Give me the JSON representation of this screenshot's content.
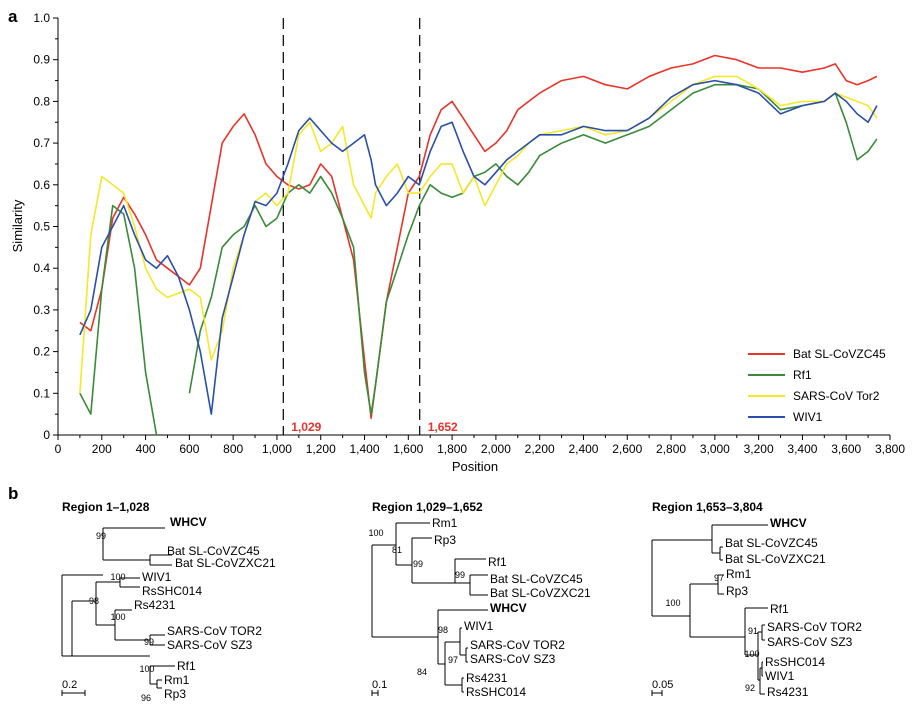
{
  "panel_a_letter": "a",
  "panel_b_letter": "b",
  "chart_data": {
    "type": "line",
    "xlabel": "Position",
    "ylabel": "Similarity",
    "xlim": [
      0,
      3800
    ],
    "ylim": [
      0,
      1.0
    ],
    "x_ticks": [
      0,
      200,
      400,
      600,
      800,
      1000,
      1200,
      1400,
      1600,
      1800,
      2000,
      2200,
      2400,
      2600,
      2800,
      3000,
      3200,
      3400,
      3600,
      3800
    ],
    "x_tick_labels": [
      "0",
      "200",
      "400",
      "600",
      "800",
      "1,000",
      "1,200",
      "1,400",
      "1,600",
      "1,800",
      "2,000",
      "2,200",
      "2,400",
      "2,600",
      "2,800",
      "3,000",
      "3,200",
      "3,400",
      "3,600",
      "3,800"
    ],
    "y_ticks": [
      0,
      0.1,
      0.2,
      0.3,
      0.4,
      0.5,
      0.6,
      0.7,
      0.8,
      0.9,
      1.0
    ],
    "y_tick_labels": [
      "0",
      "0.1",
      "0.2",
      "0.3",
      "0.4",
      "0.5",
      "0.6",
      "0.7",
      "0.8",
      "0.9",
      "1.0"
    ],
    "grid": false,
    "legend_position": "bottom-right",
    "breakpoints": [
      {
        "x": 1029,
        "label": "1,029",
        "color": "#e8332a"
      },
      {
        "x": 1652,
        "label": "1,652",
        "color": "#e8332a"
      }
    ],
    "x": [
      100,
      150,
      200,
      250,
      300,
      350,
      400,
      450,
      500,
      550,
      600,
      650,
      700,
      750,
      800,
      850,
      900,
      950,
      1000,
      1050,
      1100,
      1150,
      1200,
      1250,
      1300,
      1350,
      1400,
      1430,
      1450,
      1500,
      1550,
      1600,
      1650,
      1700,
      1750,
      1800,
      1850,
      1900,
      1950,
      2000,
      2050,
      2100,
      2150,
      2200,
      2300,
      2400,
      2500,
      2600,
      2700,
      2800,
      2900,
      3000,
      3100,
      3200,
      3300,
      3400,
      3500,
      3550,
      3600,
      3650,
      3700,
      3740
    ],
    "series": [
      {
        "name": "Bat SL-CoVZC45",
        "color": "#e8332a",
        "values": [
          0.27,
          0.25,
          0.35,
          0.52,
          0.57,
          0.53,
          0.48,
          0.42,
          0.4,
          0.38,
          0.36,
          0.4,
          0.55,
          0.7,
          0.74,
          0.77,
          0.72,
          0.65,
          0.62,
          0.6,
          0.59,
          0.6,
          0.65,
          0.62,
          0.52,
          0.42,
          0.18,
          0.04,
          0.12,
          0.32,
          0.45,
          0.58,
          0.62,
          0.72,
          0.78,
          0.8,
          0.76,
          0.72,
          0.68,
          0.7,
          0.73,
          0.78,
          0.8,
          0.82,
          0.85,
          0.86,
          0.84,
          0.83,
          0.86,
          0.88,
          0.89,
          0.91,
          0.9,
          0.88,
          0.88,
          0.87,
          0.88,
          0.89,
          0.85,
          0.84,
          0.85,
          0.86
        ]
      },
      {
        "name": "Rf1",
        "color": "#3a8a3a",
        "values": [
          0.1,
          0.05,
          0.35,
          0.55,
          0.53,
          0.4,
          0.15,
          0.0,
          null,
          null,
          0.1,
          0.25,
          0.33,
          0.45,
          0.48,
          0.5,
          0.55,
          0.5,
          0.52,
          0.58,
          0.6,
          0.58,
          0.62,
          0.58,
          0.52,
          0.45,
          0.15,
          0.05,
          0.12,
          0.32,
          0.4,
          0.48,
          0.55,
          0.6,
          0.58,
          0.57,
          0.58,
          0.62,
          0.63,
          0.65,
          0.62,
          0.6,
          0.63,
          0.67,
          0.7,
          0.72,
          0.7,
          0.72,
          0.74,
          0.78,
          0.82,
          0.84,
          0.84,
          0.83,
          0.78,
          0.79,
          0.8,
          0.82,
          0.75,
          0.66,
          0.68,
          0.71
        ]
      },
      {
        "name": "SARS-CoV Tor2",
        "color": "#f5e72a",
        "values": [
          0.1,
          0.48,
          0.62,
          0.6,
          0.58,
          0.5,
          0.4,
          0.35,
          0.33,
          0.34,
          0.35,
          0.33,
          0.18,
          0.25,
          0.4,
          0.48,
          0.56,
          0.58,
          0.55,
          0.58,
          0.72,
          0.75,
          0.68,
          0.7,
          0.74,
          0.6,
          0.55,
          0.52,
          0.58,
          0.62,
          0.65,
          0.58,
          0.58,
          0.62,
          0.65,
          0.65,
          0.58,
          0.62,
          0.55,
          0.6,
          0.65,
          0.67,
          0.7,
          0.72,
          0.73,
          0.74,
          0.72,
          0.73,
          0.76,
          0.8,
          0.84,
          0.86,
          0.86,
          0.83,
          0.79,
          0.8,
          0.8,
          0.82,
          0.81,
          0.8,
          0.79,
          0.76
        ]
      },
      {
        "name": "WIV1",
        "color": "#2a4fa8",
        "values": [
          0.24,
          0.3,
          0.45,
          0.5,
          0.55,
          0.48,
          0.42,
          0.4,
          0.43,
          0.38,
          0.3,
          0.2,
          0.05,
          0.28,
          0.38,
          0.48,
          0.56,
          0.55,
          0.58,
          0.65,
          0.73,
          0.76,
          0.73,
          0.7,
          0.68,
          0.7,
          0.72,
          0.66,
          0.6,
          0.55,
          0.58,
          0.62,
          0.6,
          0.68,
          0.74,
          0.75,
          0.68,
          0.62,
          0.6,
          0.63,
          0.66,
          0.68,
          0.7,
          0.72,
          0.72,
          0.74,
          0.73,
          0.73,
          0.76,
          0.81,
          0.84,
          0.85,
          0.84,
          0.82,
          0.77,
          0.79,
          0.8,
          0.82,
          0.8,
          0.77,
          0.75,
          0.79
        ]
      }
    ]
  },
  "trees": [
    {
      "title": "Region 1–1,028",
      "scale_label": "0.2",
      "taxa": [
        {
          "label": "WHCV",
          "bold": true
        },
        {
          "label": "Bat SL-CoVZC45",
          "bold": false
        },
        {
          "label": "Bat SL-CoVZXC21",
          "bold": false
        },
        {
          "label": "WIV1",
          "bold": false
        },
        {
          "label": "RsSHC014",
          "bold": false
        },
        {
          "label": "Rs4231",
          "bold": false
        },
        {
          "label": "SARS-CoV TOR2",
          "bold": false
        },
        {
          "label": "SARS-CoV SZ3",
          "bold": false
        },
        {
          "label": "Rf1",
          "bold": false
        },
        {
          "label": "Rm1",
          "bold": false
        },
        {
          "label": "Rp3",
          "bold": false
        }
      ],
      "bootstraps": [
        "99",
        "100",
        "98",
        "100",
        "99",
        "100",
        "96"
      ]
    },
    {
      "title": "Region 1,029–1,652",
      "scale_label": "0.1",
      "taxa": [
        {
          "label": "Rm1",
          "bold": false
        },
        {
          "label": "Rp3",
          "bold": false
        },
        {
          "label": "Rf1",
          "bold": false
        },
        {
          "label": "Bat SL-CoVZC45",
          "bold": false
        },
        {
          "label": "Bat SL-CoVZXC21",
          "bold": false
        },
        {
          "label": "WHCV",
          "bold": true
        },
        {
          "label": "WIV1",
          "bold": false
        },
        {
          "label": "SARS-CoV TOR2",
          "bold": false
        },
        {
          "label": "SARS-CoV SZ3",
          "bold": false
        },
        {
          "label": "Rs4231",
          "bold": false
        },
        {
          "label": "RsSHC014",
          "bold": false
        }
      ],
      "bootstraps": [
        "100",
        "81",
        "99",
        "99",
        "98",
        "97",
        "84"
      ]
    },
    {
      "title": "Region 1,653–3,804",
      "scale_label": "0.05",
      "taxa": [
        {
          "label": "WHCV",
          "bold": true
        },
        {
          "label": "Bat SL-CoVZC45",
          "bold": false
        },
        {
          "label": "Bat SL-CoVZXC21",
          "bold": false
        },
        {
          "label": "Rm1",
          "bold": false
        },
        {
          "label": "Rp3",
          "bold": false
        },
        {
          "label": "Rf1",
          "bold": false
        },
        {
          "label": "SARS-CoV TOR2",
          "bold": false
        },
        {
          "label": "SARS-CoV SZ3",
          "bold": false
        },
        {
          "label": "RsSHC014",
          "bold": false
        },
        {
          "label": "WIV1",
          "bold": false
        },
        {
          "label": "Rs4231",
          "bold": false
        }
      ],
      "bootstraps": [
        "97",
        "100",
        "91",
        "100",
        "92"
      ]
    }
  ]
}
